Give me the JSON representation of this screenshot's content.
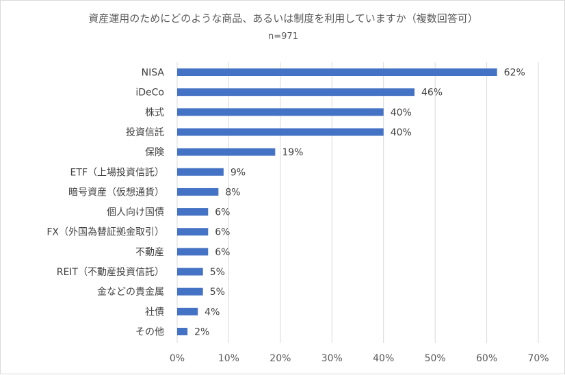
{
  "chart_data": {
    "type": "bar",
    "orientation": "horizontal",
    "title": "資産運用のためにどのような商品、あるいは制度を利用していますか（複数回答可）",
    "subtitle": "n=971",
    "categories": [
      "NISA",
      "iDeCo",
      "株式",
      "投資信託",
      "保険",
      "ETF（上場投資信託）",
      "暗号資産（仮想通貨）",
      "個人向け国債",
      "FX（外国為替証拠金取引）",
      "不動産",
      "REIT（不動産投資信託）",
      "金などの貴金属",
      "社債",
      "その他"
    ],
    "values": [
      62,
      46,
      40,
      40,
      19,
      9,
      8,
      6,
      6,
      6,
      5,
      5,
      4,
      2
    ],
    "data_labels": [
      "62%",
      "46%",
      "40%",
      "40%",
      "19%",
      "9%",
      "8%",
      "6%",
      "6%",
      "6%",
      "5%",
      "5%",
      "4%",
      "2%"
    ],
    "xlim": [
      0,
      70
    ],
    "xticks": [
      0,
      10,
      20,
      30,
      40,
      50,
      60,
      70
    ],
    "xtick_labels": [
      "0%",
      "10%",
      "20%",
      "30%",
      "40%",
      "50%",
      "60%",
      "70%"
    ],
    "xlabel": "",
    "ylabel": "",
    "grid": true,
    "legend": "none",
    "bar_color": "#4472c4"
  }
}
